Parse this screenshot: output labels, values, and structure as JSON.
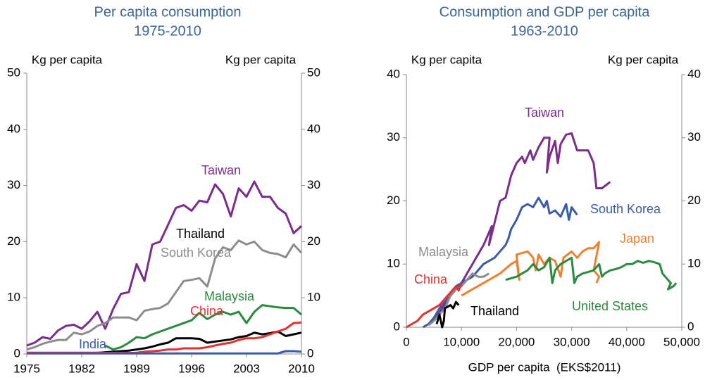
{
  "chart_data": [
    {
      "type": "line",
      "title": "Per capita consumption",
      "subtitle": "1975-2010",
      "y_label": "Kg per capita",
      "y2_label": "Kg per capita",
      "xlim": [
        1975,
        2010
      ],
      "xticks": [
        1975,
        1982,
        1989,
        1996,
        2003,
        2010
      ],
      "ylim": [
        0,
        50
      ],
      "yticks": [
        0,
        10,
        20,
        30,
        40,
        50
      ],
      "y2lim": [
        0,
        50
      ],
      "y2ticks": [
        0,
        10,
        20,
        30,
        40,
        50
      ],
      "x": [
        1975,
        1976,
        1977,
        1978,
        1979,
        1980,
        1981,
        1982,
        1983,
        1984,
        1985,
        1986,
        1987,
        1988,
        1989,
        1990,
        1991,
        1992,
        1993,
        1994,
        1995,
        1996,
        1997,
        1998,
        1999,
        2000,
        2001,
        2002,
        2003,
        2004,
        2005,
        2006,
        2007,
        2008,
        2009,
        2010
      ],
      "series": [
        {
          "name": "Taiwan",
          "color": "#7b2d8e",
          "values": [
            1.5,
            2,
            3,
            2.7,
            4.2,
            5,
            5.2,
            4.5,
            5.8,
            7.5,
            4.5,
            8,
            10.7,
            11,
            16,
            13,
            19.5,
            20,
            23,
            26,
            26.5,
            25.5,
            27.3,
            27,
            30.2,
            28.5,
            24.5,
            29.5,
            28,
            30.7,
            28,
            28,
            26,
            25,
            21.5,
            22.8
          ]
        },
        {
          "name": "South Korea",
          "color": "#8c8c8c",
          "values": [
            0.8,
            1.2,
            1.8,
            2.2,
            2.5,
            2.5,
            3.8,
            3.5,
            4,
            5,
            5.5,
            6.5,
            6.5,
            6.5,
            6,
            7.7,
            8,
            8.2,
            9,
            11,
            13,
            13.2,
            13.5,
            12,
            17,
            19,
            18.5,
            20.2,
            19.5,
            20,
            18.5,
            18,
            17.8,
            17.2,
            19.5,
            18
          ]
        },
        {
          "name": "Thailand",
          "color": "#000000",
          "values": [
            0.2,
            0.2,
            0.2,
            0.2,
            0.2,
            0.2,
            0.2,
            0.2,
            0.2,
            0.2,
            0.3,
            0.4,
            0.5,
            0.6,
            0.8,
            1,
            1.3,
            1.7,
            2,
            2.8,
            2.8,
            2.8,
            2.7,
            2,
            2.2,
            2.4,
            2.6,
            3,
            3.2,
            3.8,
            3.5,
            3.7,
            4,
            3.2,
            3.5,
            3.8
          ]
        },
        {
          "name": "Malaysia",
          "color": "#2a8a3e",
          "values": [
            null,
            null,
            null,
            null,
            null,
            null,
            null,
            null,
            null,
            null,
            1.5,
            0.8,
            1.2,
            2,
            3,
            2.8,
            3.5,
            4,
            4.5,
            5,
            5.5,
            6,
            7.3,
            6.2,
            7,
            7.5,
            7,
            7.5,
            5.5,
            7.5,
            8.7,
            8.5,
            8.3,
            8.2,
            8.2,
            7
          ]
        },
        {
          "name": "China",
          "color": "#e8312e",
          "values": [
            0.2,
            0.2,
            0.2,
            0.2,
            0.2,
            0.2,
            0.2,
            0.2,
            0.2,
            0.2,
            0.2,
            0.2,
            0.2,
            0.2,
            0.2,
            0.4,
            0.5,
            0.6,
            0.8,
            0.8,
            1,
            1,
            1,
            1.2,
            1.5,
            1.8,
            2,
            2.5,
            2.8,
            2.8,
            3,
            3.5,
            4,
            4.5,
            5.5,
            5.6
          ]
        },
        {
          "name": "India",
          "color": "#3a5ba9",
          "values": [
            0.1,
            0.1,
            0.1,
            0.1,
            0.1,
            0.1,
            0.1,
            0.1,
            0.1,
            0.1,
            0.1,
            0.1,
            0.1,
            0.1,
            0.1,
            0.1,
            0.1,
            0.1,
            0.1,
            0.1,
            0.1,
            0.1,
            0.1,
            0.1,
            0.1,
            0.1,
            0.1,
            0.1,
            0.1,
            0.1,
            0.1,
            0.1,
            0.1,
            0.5,
            0.5,
            0.4
          ]
        }
      ]
    },
    {
      "type": "line",
      "title": "Consumption and GDP per capita",
      "subtitle": "1963-2010",
      "y_label": "Kg per capita",
      "y2_label": "Kg per capita",
      "x_label": "GDP per capita  (EKS$2011)",
      "xlim": [
        0,
        50000
      ],
      "xticks": [
        0,
        {
          "value": 10000,
          "label": "10,000"
        },
        {
          "value": 20000,
          "label": "20,000"
        },
        {
          "value": 30000,
          "label": "30,000"
        },
        {
          "value": 40000,
          "label": "40,000"
        },
        {
          "value": 50000,
          "label": "50,000"
        }
      ],
      "ylim": [
        0,
        40
      ],
      "yticks": [
        0,
        10,
        20,
        30,
        40
      ],
      "y2lim": [
        0,
        40
      ],
      "y2ticks": [
        0,
        10,
        20,
        30,
        40
      ],
      "series": [
        {
          "name": "Taiwan",
          "color": "#7b2d8e",
          "x": [
            5000,
            8000,
            10000,
            12000,
            14000,
            15500,
            15000,
            17000,
            18000,
            19000,
            20000,
            21000,
            21500,
            22500,
            23000,
            24000,
            25000,
            26000,
            25500,
            26000,
            27000,
            27500,
            28000,
            29000,
            30000,
            31000,
            32000,
            33000,
            34000,
            34500,
            35500,
            37000
          ],
          "values": [
            1,
            5,
            7,
            10,
            13,
            16,
            13,
            20,
            20.5,
            24,
            26,
            27,
            26,
            28,
            26.5,
            28.5,
            30,
            30,
            24.5,
            27,
            29.5,
            26,
            29,
            30.5,
            30.7,
            28,
            28,
            28,
            26,
            22,
            22,
            23
          ]
        },
        {
          "name": "South Korea",
          "color": "#3a5ba9",
          "x": [
            3000,
            4000,
            5000,
            6000,
            7000,
            8000,
            9000,
            10000,
            12000,
            14000,
            16000,
            17000,
            18000,
            18500,
            19000,
            20000,
            21000,
            22000,
            23000,
            24000,
            25000,
            25500,
            26000,
            27000,
            28000,
            29000,
            29500,
            30000,
            31000
          ],
          "values": [
            0,
            0.5,
            1.5,
            3,
            4,
            5,
            6.5,
            7,
            8,
            10,
            11,
            12,
            13,
            14,
            15.5,
            17,
            19,
            19.5,
            19,
            20.5,
            19,
            20,
            18,
            18.5,
            17.5,
            19.5,
            17,
            19,
            17.8
          ]
        },
        {
          "name": "Japan",
          "color": "#f08030",
          "x": [
            10000,
            12000,
            14000,
            15000,
            17000,
            19000,
            20000,
            20500,
            20000,
            22000,
            23000,
            23500,
            24000,
            25000,
            26000,
            27000,
            28000,
            28500,
            30000,
            31000,
            32000,
            33000,
            34000,
            35000,
            34000,
            35000,
            34500
          ],
          "values": [
            5,
            6,
            7,
            7.5,
            8.5,
            10,
            10.5,
            7.5,
            11.5,
            12,
            11,
            9,
            11.5,
            10,
            11,
            10.5,
            8,
            11,
            12,
            11,
            12,
            12.5,
            12.5,
            13.5,
            9,
            8,
            7
          ]
        },
        {
          "name": "Malaysia",
          "color": "#8c8c8c",
          "x": [
            4000,
            5000,
            6000,
            7000,
            8000,
            9000,
            10000,
            11000,
            12000,
            13000,
            14000,
            15000
          ],
          "values": [
            0.3,
            1,
            2,
            3,
            5,
            6,
            6.5,
            7.5,
            8.5,
            8,
            8,
            8.5
          ]
        },
        {
          "name": "China",
          "color": "#e8312e",
          "x": [
            0,
            1000,
            2000,
            3000,
            4000,
            5000,
            6000,
            7000,
            8000,
            9000,
            9500,
            10000
          ],
          "values": [
            0,
            0.5,
            1,
            2,
            2.5,
            3,
            3.5,
            4.5,
            5.5,
            6.5,
            5.8,
            7
          ]
        },
        {
          "name": "Thailand",
          "color": "#000000",
          "x": [
            5500,
            6000,
            6500,
            6800,
            7000,
            8000,
            8500,
            9000,
            9500
          ],
          "values": [
            0.5,
            2,
            0,
            1,
            3,
            3.5,
            3,
            4,
            3.5
          ]
        },
        {
          "name": "United States",
          "color": "#2a8a3e",
          "x": [
            18000,
            20000,
            22000,
            23000,
            24000,
            25000,
            26000,
            26500,
            27000,
            28000,
            29000,
            30000,
            30500,
            31000,
            32000,
            34000,
            35000,
            35500,
            36000,
            37000,
            38000,
            39000,
            40000,
            41000,
            42000,
            43000,
            44000,
            45000,
            46000,
            46500,
            47000,
            48000,
            47500,
            48500,
            49000
          ],
          "values": [
            7.5,
            8,
            9,
            10,
            9,
            9.5,
            11,
            7,
            9,
            10,
            10.5,
            11,
            7,
            8,
            8.5,
            9,
            10,
            8,
            8.5,
            9,
            9.2,
            9.5,
            10,
            10,
            10.5,
            10.2,
            10.5,
            10.3,
            10,
            8.5,
            8,
            7,
            6,
            6.5,
            7
          ]
        }
      ]
    }
  ]
}
